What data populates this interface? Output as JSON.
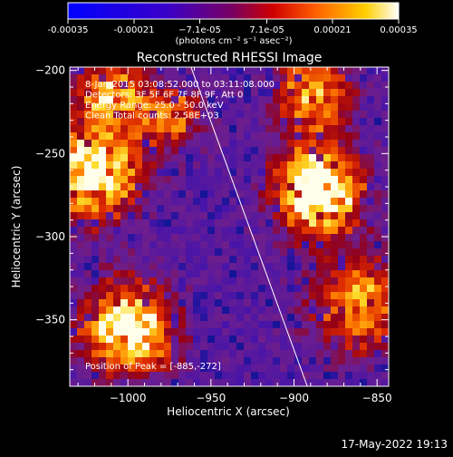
{
  "colorbar": {
    "ticks": [
      "-0.00035",
      "-0.00021",
      "−7.1e-05",
      "7.1e-05",
      "0.00021",
      "0.00035"
    ],
    "tick_values": [
      -0.00035,
      -0.00021,
      -7.1e-05,
      7.1e-05,
      0.00021,
      0.00035
    ],
    "unit_label": "(photons cm⁻² s⁻¹ asec⁻²)",
    "range": [
      -0.00035,
      0.00035
    ],
    "colors": [
      "#0000ff",
      "#5a0090",
      "#a00000",
      "#ff6a00",
      "#ffd000",
      "#ffffff"
    ]
  },
  "chart_data": {
    "type": "heatmap",
    "title": "Reconstructed RHESSI Image",
    "xlabel": "Heliocentric X (arcsec)",
    "ylabel": "Heliocentric Y (arcsec)",
    "xlim": [
      -1035,
      -843
    ],
    "ylim": [
      -390,
      -198
    ],
    "xticks": [
      -1000,
      -950,
      -900,
      -850
    ],
    "xtick_labels": [
      "−1000",
      "−950",
      "−900",
      "−850"
    ],
    "yticks": [
      -200,
      -250,
      -300,
      -350
    ],
    "ytick_labels": [
      "−200",
      "−250",
      "−300",
      "−350"
    ],
    "grid": false,
    "sources": [
      {
        "x": -885,
        "y": -272,
        "radius": 24,
        "intensity": 1.0
      },
      {
        "x": -1020,
        "y": -262,
        "radius": 26,
        "intensity": 0.8
      },
      {
        "x": -1000,
        "y": -355,
        "radius": 25,
        "intensity": 0.85
      },
      {
        "x": -975,
        "y": -228,
        "radius": 18,
        "intensity": 0.5
      },
      {
        "x": -890,
        "y": -215,
        "radius": 22,
        "intensity": 0.55
      },
      {
        "x": -860,
        "y": -340,
        "radius": 28,
        "intensity": 0.5
      },
      {
        "x": -1010,
        "y": -215,
        "radius": 20,
        "intensity": 0.55
      }
    ],
    "limb": {
      "from": [
        -962,
        -198
      ],
      "to": [
        -892,
        -390
      ]
    },
    "annotations": [
      "8-Jan-2015 03:08:52.000 to 03:11:08.000",
      "Detectors: 3F 5F 6F 7F 8F 9F, Att 0",
      "Energy Range: 25.0 - 50.0 keV",
      "Clean    Total counts: 2.58E+03"
    ],
    "peak_label": "Position of Peak = [-885,-272]"
  },
  "timestamp": "17-May-2022 19:13"
}
